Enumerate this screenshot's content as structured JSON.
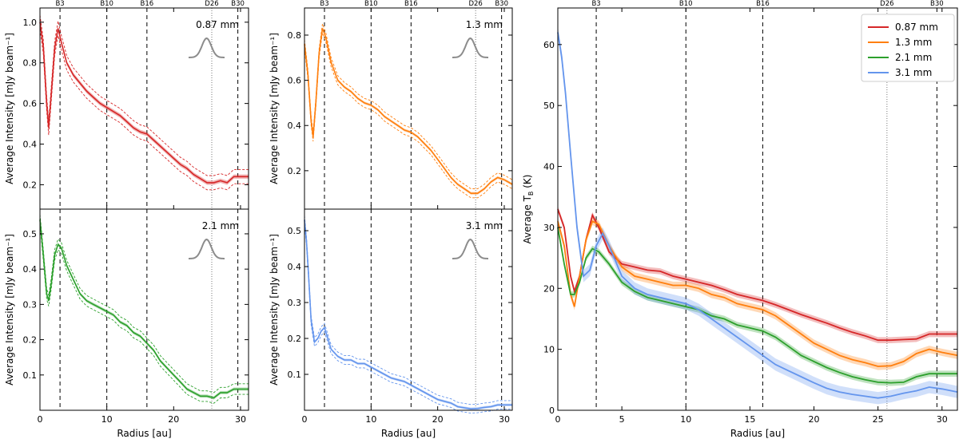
{
  "chart_data": [
    {
      "type": "line",
      "id": "p087",
      "title": "",
      "label": "0.87 mm",
      "color": "#d62728",
      "xlabel": "",
      "ylabel": "Average Intensity [mJy beam⁻¹]",
      "xlim": [
        0,
        31.2
      ],
      "ylim": [
        0.08,
        1.07
      ],
      "xticks": [
        0,
        10,
        20,
        30
      ],
      "yticks": [
        0.2,
        0.4,
        0.6,
        0.8,
        1.0
      ],
      "ytick_labels": [
        "0.2",
        "0.4",
        "0.6",
        "0.8",
        "1.0"
      ],
      "band": 0.035,
      "series": [
        {
          "name": "0.87 mm",
          "x": [
            0,
            0.5,
            1.0,
            1.3,
            1.7,
            2.2,
            2.7,
            3.2,
            4.0,
            5.0,
            6.0,
            7.0,
            8.0,
            9.0,
            10.0,
            11.0,
            12.0,
            13.0,
            14.0,
            15.0,
            16.0,
            17.0,
            18.0,
            19.0,
            20.0,
            21.0,
            22.0,
            23.0,
            24.0,
            25.0,
            26.0,
            27.0,
            28.0,
            29.0,
            30.0,
            31.2
          ],
          "y": [
            1.0,
            0.88,
            0.6,
            0.48,
            0.65,
            0.87,
            0.97,
            0.9,
            0.8,
            0.74,
            0.7,
            0.66,
            0.63,
            0.6,
            0.58,
            0.56,
            0.54,
            0.51,
            0.48,
            0.46,
            0.45,
            0.42,
            0.39,
            0.36,
            0.33,
            0.3,
            0.28,
            0.25,
            0.23,
            0.21,
            0.21,
            0.22,
            0.21,
            0.24,
            0.24,
            0.24
          ]
        }
      ]
    },
    {
      "type": "line",
      "id": "p13",
      "title": "",
      "label": "1.3 mm",
      "color": "#ff7f0e",
      "xlabel": "",
      "ylabel": "Average Intensity [mJy beam⁻¹]",
      "xlim": [
        0,
        31.2
      ],
      "ylim": [
        0.03,
        0.92
      ],
      "xticks": [
        0,
        10,
        20,
        30
      ],
      "yticks": [
        0.2,
        0.4,
        0.6,
        0.8
      ],
      "ytick_labels": [
        "0.2",
        "0.4",
        "0.6",
        "0.8"
      ],
      "band": 0.02,
      "series": [
        {
          "name": "1.3 mm",
          "x": [
            0,
            0.5,
            1.0,
            1.3,
            1.7,
            2.2,
            2.7,
            3.2,
            4.0,
            5.0,
            6.0,
            7.0,
            8.0,
            9.0,
            10.0,
            11.0,
            12.0,
            13.0,
            14.0,
            15.0,
            16.0,
            17.0,
            18.0,
            19.0,
            20.0,
            21.0,
            22.0,
            23.0,
            24.0,
            25.0,
            26.0,
            27.0,
            28.0,
            29.0,
            30.0,
            31.2
          ],
          "y": [
            0.76,
            0.63,
            0.42,
            0.35,
            0.5,
            0.72,
            0.83,
            0.79,
            0.68,
            0.6,
            0.57,
            0.55,
            0.52,
            0.5,
            0.49,
            0.47,
            0.44,
            0.42,
            0.4,
            0.38,
            0.37,
            0.35,
            0.32,
            0.29,
            0.25,
            0.21,
            0.17,
            0.14,
            0.12,
            0.1,
            0.1,
            0.12,
            0.15,
            0.17,
            0.16,
            0.14
          ]
        }
      ]
    },
    {
      "type": "line",
      "id": "p21",
      "title": "",
      "label": "2.1 mm",
      "color": "#2ca02c",
      "xlabel": "Radius [au]",
      "ylabel": "Average Intensity [mJy beam⁻¹]",
      "xlim": [
        0,
        31.2
      ],
      "ylim": [
        0.0,
        0.57
      ],
      "xticks": [
        0,
        10,
        20,
        30
      ],
      "yticks": [
        0.1,
        0.2,
        0.3,
        0.4,
        0.5
      ],
      "ytick_labels": [
        "0.1",
        "0.2",
        "0.3",
        "0.4",
        "0.5"
      ],
      "band": 0.015,
      "series": [
        {
          "name": "2.1 mm",
          "x": [
            0,
            0.5,
            1.0,
            1.3,
            1.7,
            2.2,
            2.7,
            3.2,
            4.0,
            5.0,
            6.0,
            7.0,
            8.0,
            9.0,
            10.0,
            11.0,
            12.0,
            13.0,
            14.0,
            15.0,
            16.0,
            17.0,
            18.0,
            19.0,
            20.0,
            21.0,
            22.0,
            23.0,
            24.0,
            25.0,
            26.0,
            27.0,
            28.0,
            29.0,
            30.0,
            31.2
          ],
          "y": [
            0.54,
            0.44,
            0.33,
            0.31,
            0.36,
            0.44,
            0.47,
            0.46,
            0.41,
            0.37,
            0.33,
            0.31,
            0.3,
            0.29,
            0.28,
            0.27,
            0.25,
            0.24,
            0.22,
            0.21,
            0.19,
            0.17,
            0.14,
            0.12,
            0.1,
            0.08,
            0.06,
            0.05,
            0.04,
            0.04,
            0.035,
            0.05,
            0.05,
            0.06,
            0.06,
            0.06
          ]
        }
      ]
    },
    {
      "type": "line",
      "id": "p31",
      "title": "",
      "label": "3.1 mm",
      "color": "#6495ed",
      "xlabel": "Radius [au]",
      "ylabel": "Average Intensity [mJy beam⁻¹]",
      "xlim": [
        0,
        31.2
      ],
      "ylim": [
        0.0,
        0.56
      ],
      "xticks": [
        0,
        10,
        20,
        30
      ],
      "yticks": [
        0.1,
        0.2,
        0.3,
        0.4,
        0.5
      ],
      "ytick_labels": [
        "0.1",
        "0.2",
        "0.3",
        "0.4",
        "0.5"
      ],
      "band": 0.012,
      "series": [
        {
          "name": "3.1 mm",
          "x": [
            0,
            0.3,
            0.6,
            1.0,
            1.5,
            2.0,
            2.5,
            3.0,
            3.5,
            4.0,
            5.0,
            6.0,
            7.0,
            8.0,
            9.0,
            10.0,
            11.0,
            12.0,
            13.0,
            14.0,
            15.0,
            16.0,
            17.0,
            18.0,
            19.0,
            20.0,
            21.0,
            22.0,
            23.0,
            24.0,
            25.0,
            26.0,
            27.0,
            28.0,
            29.0,
            30.0,
            31.2
          ],
          "y": [
            0.53,
            0.47,
            0.38,
            0.25,
            0.19,
            0.2,
            0.22,
            0.23,
            0.2,
            0.17,
            0.15,
            0.14,
            0.14,
            0.13,
            0.13,
            0.12,
            0.11,
            0.1,
            0.09,
            0.085,
            0.08,
            0.07,
            0.06,
            0.05,
            0.04,
            0.03,
            0.025,
            0.02,
            0.01,
            0.007,
            0.004,
            0.005,
            0.008,
            0.01,
            0.015,
            0.015,
            0.015
          ]
        }
      ]
    },
    {
      "type": "line",
      "id": "ptb",
      "title": "",
      "xlabel": "Radius [au]",
      "ylabel": "Average T_B (K)",
      "ylabel_main": "Average T",
      "ylabel_sub": "B",
      "ylabel_tail": " (K)",
      "xlim": [
        0,
        31.2
      ],
      "ylim": [
        0,
        66
      ],
      "xticks": [
        0,
        5,
        10,
        15,
        20,
        25,
        30
      ],
      "yticks": [
        0,
        10,
        20,
        30,
        40,
        50,
        60
      ],
      "ytick_labels": [
        "0",
        "10",
        "20",
        "30",
        "40",
        "50",
        "60"
      ],
      "legend_position": "upper-right",
      "series": [
        {
          "name": "0.87 mm",
          "color": "#d62728",
          "band": 0.5,
          "x": [
            0,
            0.5,
            1.0,
            1.3,
            1.7,
            2.2,
            2.7,
            3.2,
            4.0,
            5.0,
            6.0,
            7.0,
            8.0,
            9.0,
            10.0,
            11.0,
            12.0,
            13.0,
            14.0,
            15.0,
            16.0,
            17.0,
            18.0,
            19.0,
            20.0,
            21.0,
            22.0,
            23.0,
            24.0,
            25.0,
            26.0,
            27.0,
            28.0,
            29.0,
            30.0,
            31.2
          ],
          "y": [
            33,
            30,
            22,
            19.5,
            22,
            28,
            32,
            30,
            26,
            24,
            23.5,
            23,
            22.8,
            22,
            21.5,
            21,
            20.5,
            19.8,
            19,
            18.5,
            18,
            17.3,
            16.5,
            15.7,
            15,
            14.3,
            13.5,
            12.8,
            12.2,
            11.5,
            11.5,
            11.6,
            11.7,
            12.5,
            12.5,
            12.5
          ]
        },
        {
          "name": "1.3 mm",
          "color": "#ff7f0e",
          "band": 0.6,
          "x": [
            0,
            0.5,
            1.0,
            1.3,
            1.7,
            2.2,
            2.7,
            3.2,
            4.0,
            5.0,
            6.0,
            7.0,
            8.0,
            9.0,
            10.0,
            11.0,
            12.0,
            13.0,
            14.0,
            15.0,
            16.0,
            17.0,
            18.0,
            19.0,
            20.0,
            21.0,
            22.0,
            23.0,
            24.0,
            25.0,
            26.0,
            27.0,
            28.0,
            29.0,
            30.0,
            31.2
          ],
          "y": [
            31,
            27,
            19,
            17,
            22,
            28,
            31,
            30.5,
            27,
            23.5,
            22,
            21.5,
            21,
            20.5,
            20.5,
            20,
            19,
            18.5,
            17.5,
            17,
            16.5,
            15.5,
            14,
            12.5,
            11,
            10,
            9,
            8.3,
            7.8,
            7.2,
            7.3,
            8,
            9.3,
            10,
            9.5,
            9
          ]
        },
        {
          "name": "2.1 mm",
          "color": "#2ca02c",
          "band": 0.5,
          "x": [
            0,
            0.5,
            1.0,
            1.3,
            1.7,
            2.2,
            2.7,
            3.2,
            4.0,
            5.0,
            6.0,
            7.0,
            8.0,
            9.0,
            10.0,
            11.0,
            12.0,
            13.0,
            14.0,
            15.0,
            16.0,
            17.0,
            18.0,
            19.0,
            20.0,
            21.0,
            22.0,
            23.0,
            24.0,
            25.0,
            26.0,
            27.0,
            28.0,
            29.0,
            30.0,
            31.2
          ],
          "y": [
            30,
            24,
            19,
            19,
            21,
            25,
            26.5,
            26,
            24,
            21,
            19.5,
            18.5,
            18,
            17.5,
            17,
            16.5,
            15.5,
            15,
            14,
            13.5,
            13,
            12,
            10.5,
            9,
            8,
            7,
            6.2,
            5.5,
            5,
            4.6,
            4.5,
            4.6,
            5.5,
            6,
            6,
            6
          ]
        },
        {
          "name": "3.1 mm",
          "color": "#6495ed",
          "band": 1.0,
          "x": [
            0,
            0.3,
            0.6,
            1.0,
            1.5,
            2.0,
            2.5,
            3.0,
            3.5,
            4.0,
            5.0,
            6.0,
            7.0,
            8.0,
            9.0,
            10.0,
            11.0,
            12.0,
            13.0,
            14.0,
            15.0,
            16.0,
            17.0,
            18.0,
            19.0,
            20.0,
            21.0,
            22.0,
            23.0,
            24.0,
            25.0,
            26.0,
            27.0,
            28.0,
            29.0,
            30.0,
            31.2
          ],
          "y": [
            62,
            58,
            52,
            42,
            30,
            22,
            23,
            27,
            29,
            27,
            22,
            20,
            19,
            18.5,
            18,
            17.5,
            16.5,
            15,
            13.5,
            12,
            10.5,
            9,
            7.5,
            6.5,
            5.5,
            4.5,
            3.6,
            3,
            2.6,
            2.3,
            2.0,
            2.3,
            2.8,
            3.2,
            3.8,
            3.5,
            3
          ]
        }
      ]
    }
  ],
  "markers": {
    "dashed": [
      {
        "label": "B3",
        "r": 3.0
      },
      {
        "label": "B10",
        "r": 10.0
      },
      {
        "label": "B16",
        "r": 16.0
      },
      {
        "label": "B30",
        "r": 29.6
      }
    ],
    "dotted": [
      {
        "label": "D26",
        "r": 25.7
      }
    ]
  },
  "colors": {
    "red": "#d62728",
    "orange": "#ff7f0e",
    "green": "#2ca02c",
    "blue": "#6495ed",
    "beam": "#8c8c8c",
    "axis": "#000000"
  }
}
